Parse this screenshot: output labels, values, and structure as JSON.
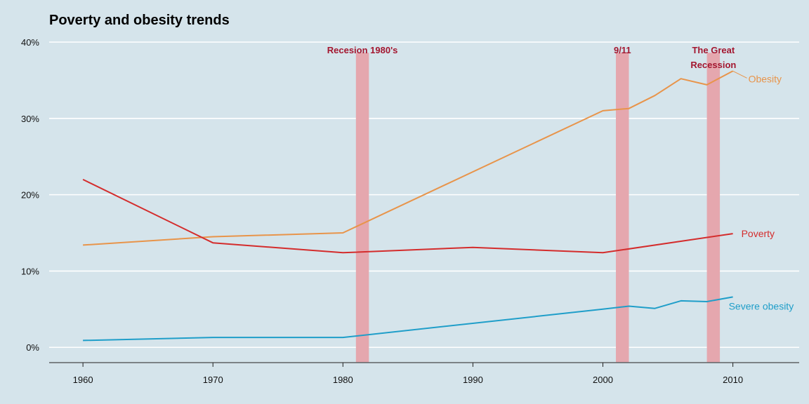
{
  "chart_data": {
    "type": "line",
    "title": "Poverty and obesity trends",
    "xlabel": "",
    "ylabel": "",
    "xlim": [
      1957.4,
      2015.1
    ],
    "ylim": [
      -2,
      40
    ],
    "x_ticks": [
      "1960",
      "1970",
      "1980",
      "1990",
      "2000",
      "2010"
    ],
    "y_ticks": [
      "0%",
      "10%",
      "20%",
      "30%",
      "40%"
    ],
    "grid": "horizontal",
    "background": "#d5e4eb",
    "series": [
      {
        "name": "Obesity",
        "color": "#e8944a",
        "x": [
          1960,
          1970,
          1980,
          2000,
          2002,
          2004,
          2006,
          2008,
          2010
        ],
        "y": [
          13.4,
          14.5,
          15.0,
          31.0,
          31.3,
          33.0,
          35.2,
          34.4,
          36.2
        ]
      },
      {
        "name": "Poverty",
        "color": "#d42c2c",
        "x": [
          1960,
          1970,
          1980,
          1990,
          2000,
          2010
        ],
        "y": [
          22.0,
          13.7,
          12.4,
          13.1,
          12.4,
          14.9
        ]
      },
      {
        "name": "Severe obesity",
        "color": "#1f9ec9",
        "x": [
          1960,
          1970,
          1980,
          2000,
          2002,
          2004,
          2006,
          2008,
          2010
        ],
        "y": [
          0.9,
          1.3,
          1.3,
          5.0,
          5.4,
          5.1,
          6.1,
          6.0,
          6.6
        ]
      }
    ],
    "recessions": [
      {
        "label": [
          "Recesion 1980's"
        ],
        "start": 1981,
        "end": 1982
      },
      {
        "label": [
          "9/11"
        ],
        "start": 2001,
        "end": 2002
      },
      {
        "label": [
          "The Great",
          "Recession"
        ],
        "start": 2008,
        "end": 2009
      }
    ],
    "recession_color": "#e5a7ae"
  }
}
